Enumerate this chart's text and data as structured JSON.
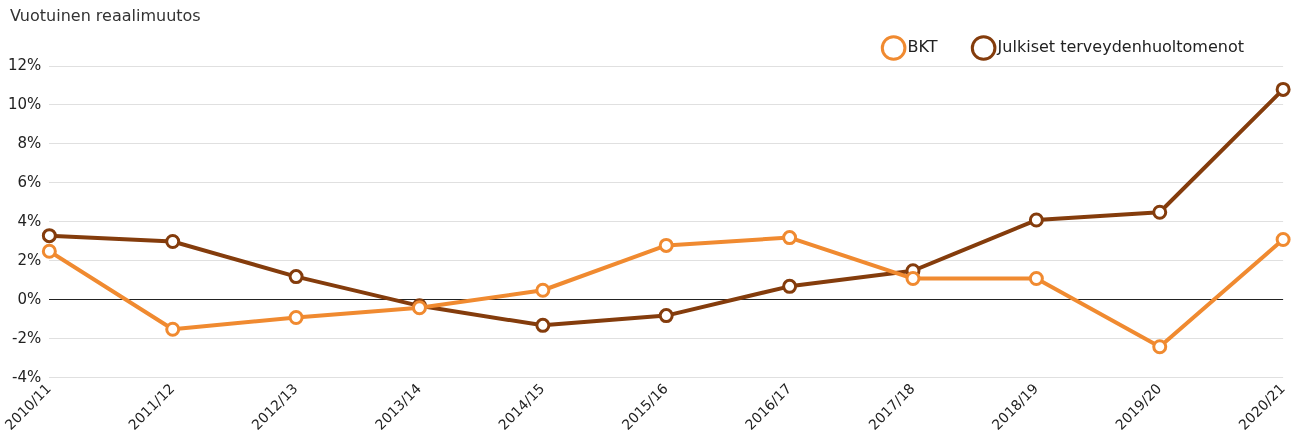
{
  "chart_data": {
    "type": "line",
    "ylabel": "Vuotuinen reaalimuutos",
    "categories": [
      "2010/11",
      "2011/12",
      "2012/13",
      "2013/14",
      "2014/15",
      "2015/16",
      "2016/17",
      "2017/18",
      "2018/19",
      "2019/20",
      "2020/21"
    ],
    "series": [
      {
        "name": "Julkiset terveydenhuoltomenot",
        "color": "#843c0c",
        "values": [
          3.3,
          3.0,
          1.2,
          -0.3,
          -1.3,
          -0.8,
          0.7,
          1.5,
          4.1,
          4.5,
          10.8
        ]
      },
      {
        "name": "BKT",
        "color": "#f08a30",
        "values": [
          2.5,
          -1.5,
          -0.9,
          -0.4,
          0.5,
          2.8,
          3.2,
          1.1,
          1.1,
          -2.4,
          3.1
        ]
      }
    ],
    "ylim": [
      -4,
      12
    ],
    "yticks": [
      {
        "value": -4,
        "label": "-4%"
      },
      {
        "value": -2,
        "label": "-2%"
      },
      {
        "value": 0,
        "label": "0%"
      },
      {
        "value": 2,
        "label": "2%"
      },
      {
        "value": 4,
        "label": "4%"
      },
      {
        "value": 6,
        "label": "6%"
      },
      {
        "value": 8,
        "label": "8%"
      },
      {
        "value": 10,
        "label": "10%"
      },
      {
        "value": 12,
        "label": "12%"
      }
    ],
    "grid": "y",
    "legend": "top right",
    "marker": "circle",
    "line_style": "solid"
  }
}
